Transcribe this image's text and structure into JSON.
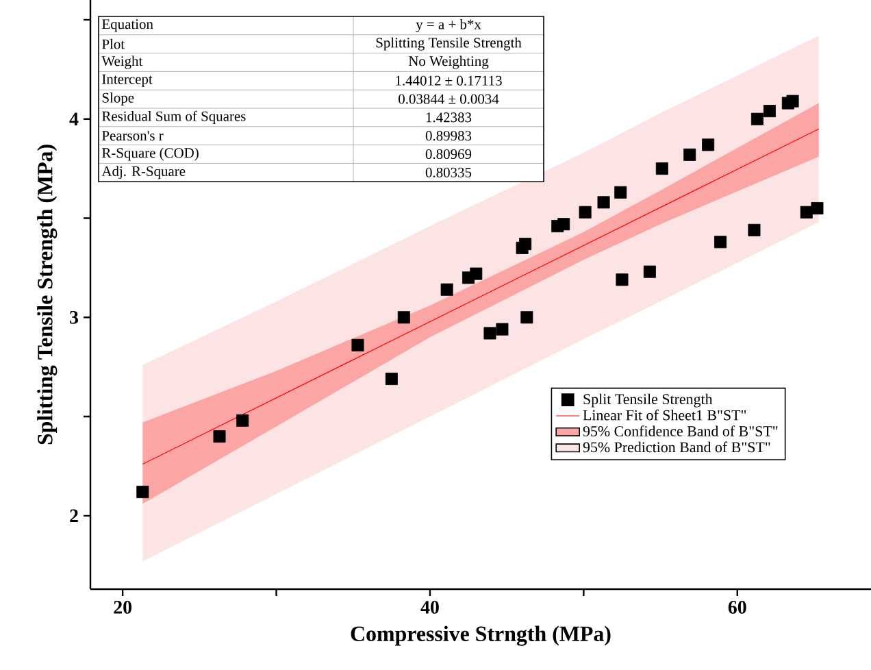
{
  "chart_data": {
    "type": "scatter",
    "xlabel": "Compressive Strngth (MPa)",
    "ylabel": "Splitting Tensile Strength (MPa)",
    "xlim": [
      17.9,
      68.7
    ],
    "ylim": [
      1.63,
      4.6
    ],
    "xticks": [
      20,
      {
        "value": 30,
        "label": null
      },
      40,
      {
        "value": 50,
        "label": null
      },
      60
    ],
    "yticks": [
      2,
      {
        "value": 2.5,
        "label": null
      },
      3,
      {
        "value": 3.5,
        "label": null
      },
      4,
      {
        "value": 4.5,
        "label": null
      }
    ],
    "legend": "right",
    "annotations": [
      "Equation",
      "y = a + b*x",
      "Plot",
      "Splitting Tensile Strength",
      "Weight",
      "No Weighting",
      "Intercept",
      "1.44012 ± 0.17113",
      "Slope",
      "0.03844 ± 0.0034",
      "Residual Sum of Squares",
      "1.42383",
      "Pearson's r",
      "0.89983",
      "R-Square (COD)",
      "0.80969",
      "Adj. R-Square",
      "0.80335"
    ],
    "series": [
      {
        "type": "line",
        "name": "95% Prediction Band of B\"ST\"",
        "color": "#fde4e4",
        "x": [
          21.3,
          30,
          40,
          50,
          55,
          65.3
        ],
        "values": [
          null,
          null,
          null,
          null,
          null,
          null
        ],
        "lower": [
          1.77,
          2.11,
          2.5,
          2.89,
          3.08,
          3.48
        ],
        "upper": [
          2.76,
          3.08,
          3.46,
          3.83,
          4.03,
          4.42
        ]
      },
      {
        "type": "line",
        "name": "95% Confidence Band of B\"ST\"",
        "color": "#fca5a5",
        "x": [
          21.3,
          30,
          40,
          50,
          55,
          65.3
        ],
        "values": [
          null,
          null,
          null,
          null,
          null,
          null
        ],
        "lower": [
          2.06,
          2.45,
          2.9,
          3.29,
          3.47,
          3.81
        ],
        "upper": [
          2.47,
          2.73,
          3.06,
          3.43,
          3.64,
          4.08
        ]
      },
      {
        "type": "line",
        "name": "Linear Fit of Sheet1 B\"ST\"",
        "color": "#ff0000",
        "x": [
          21.3,
          65.3
        ],
        "values": [
          2.26,
          3.95
        ]
      },
      {
        "name": "Split Tensile Strength",
        "color": "#000000",
        "marker": "square",
        "x": [
          21.3,
          26.3,
          27.8,
          35.3,
          37.5,
          38.3,
          41.1,
          42.5,
          43.0,
          43.9,
          44.7,
          46.3,
          46.0,
          46.2,
          48.3,
          48.7,
          50.1,
          51.3,
          52.4,
          52.5,
          54.3,
          55.1,
          56.9,
          58.1,
          58.9,
          61.1,
          61.3,
          62.1,
          63.3,
          63.6,
          64.5,
          65.2
        ],
        "values": [
          2.12,
          2.4,
          2.48,
          2.86,
          2.69,
          3.0,
          3.14,
          3.2,
          3.22,
          2.92,
          2.94,
          3.0,
          3.35,
          3.37,
          3.46,
          3.47,
          3.53,
          3.58,
          3.63,
          3.19,
          3.23,
          3.75,
          3.82,
          3.87,
          3.38,
          3.44,
          4.0,
          4.04,
          4.08,
          4.09,
          3.53,
          3.55
        ]
      }
    ]
  }
}
